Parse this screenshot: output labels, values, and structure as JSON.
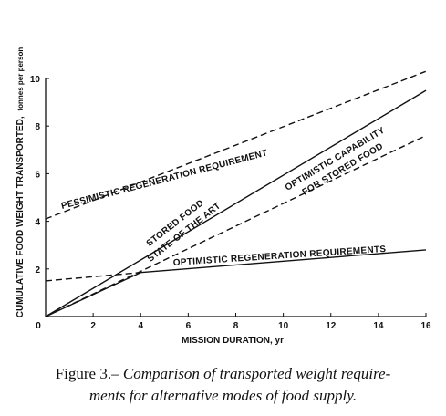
{
  "chart_data": {
    "type": "line",
    "xlabel": "MISSION DURATION, yr",
    "ylabel": "CUMULATIVE FOOD WEIGHT TRANSPORTED,",
    "ylabel_unit": "tonnes per person",
    "xlim": [
      0,
      16
    ],
    "ylim": [
      0,
      10
    ],
    "x_ticks": [
      2,
      4,
      6,
      8,
      10,
      12,
      14,
      16
    ],
    "y_ticks": [
      0,
      2,
      4,
      6,
      8,
      10
    ],
    "grid": false,
    "series": [
      {
        "name": "PESSIMISTIC REGENERATION REQUIREMENT",
        "style": "dashed",
        "x": [
          0,
          16
        ],
        "y": [
          4.1,
          10.3
        ]
      },
      {
        "name": "STORED FOOD STATE OF THE ART",
        "style": "solid",
        "x": [
          0,
          16
        ],
        "y": [
          0,
          9.5
        ]
      },
      {
        "name": "OPTIMISTIC CAPABILITY FOR STORED FOOD",
        "style": "dashed",
        "x": [
          0,
          16
        ],
        "y": [
          0,
          7.6
        ]
      },
      {
        "name": "OPTIMISTIC REGENERATION REQUIREMENTS",
        "style": "solid",
        "x": [
          0,
          4,
          16
        ],
        "y": [
          0,
          1.85,
          2.8
        ]
      },
      {
        "name": "OPTIMISTIC REGENERATION REQUIREMENTS (initial)",
        "style": "dashed",
        "x": [
          0,
          4
        ],
        "y": [
          1.5,
          1.85
        ]
      }
    ],
    "annotations": [
      {
        "lines": [
          "PESSIMISTIC REGENERATION REQUIREMENT"
        ]
      },
      {
        "lines": [
          "STORED FOOD",
          "STATE OF THE ART"
        ]
      },
      {
        "lines": [
          "OPTIMISTIC CAPABILITY",
          "FOR STORED FOOD"
        ]
      },
      {
        "lines": [
          "OPTIMISTIC REGENERATION REQUIREMENTS"
        ]
      }
    ]
  },
  "caption": {
    "label": "Figure 3.",
    "dash": "–",
    "line1": "Comparison of transported weight require-",
    "line2": "ments for alternative modes of food supply."
  }
}
